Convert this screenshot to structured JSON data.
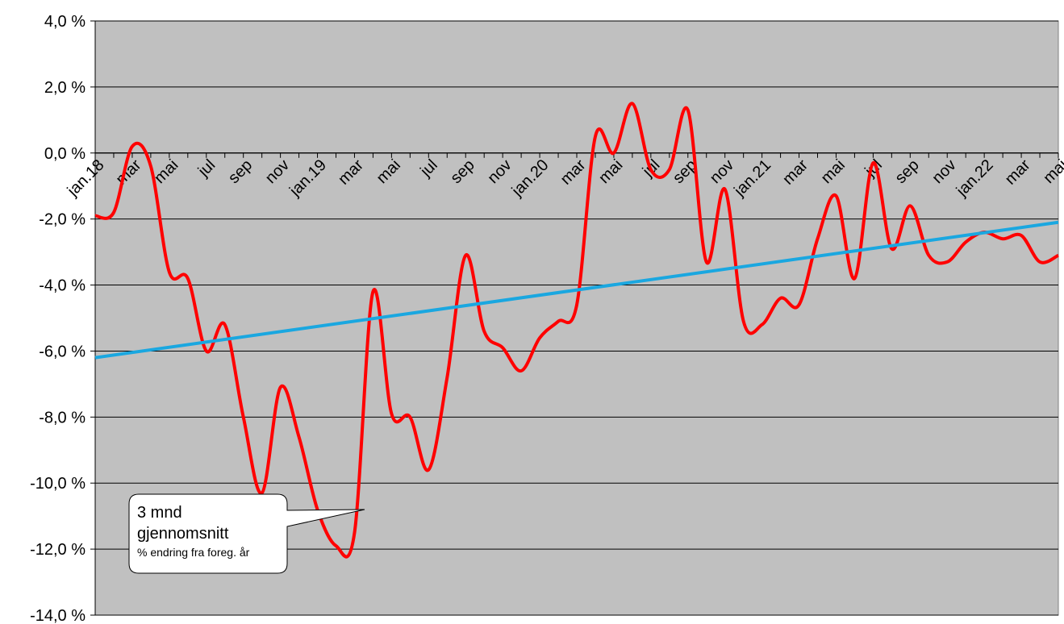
{
  "chart_data": {
    "type": "line",
    "ylim": [
      -14,
      4
    ],
    "y_ticks": [
      "4,0 %",
      "2,0 %",
      "0,0 %",
      "-2,0 %",
      "-4,0 %",
      "-6,0 %",
      "-8,0 %",
      "-10,0 %",
      "-12,0 %",
      "-14,0 %"
    ],
    "y_tick_values": [
      4,
      2,
      0,
      -2,
      -4,
      -6,
      -8,
      -10,
      -12,
      -14
    ],
    "x_tick_labels": [
      "jan.18",
      "mar",
      "mai",
      "jul",
      "sep",
      "nov",
      "jan.19",
      "mar",
      "mai",
      "jul",
      "sep",
      "nov",
      "jan.20",
      "mar",
      "mai",
      "jul",
      "sep",
      "nov",
      "jan.21",
      "mar",
      "mai",
      "jul",
      "sep",
      "nov",
      "jan.22",
      "mar",
      "mai"
    ],
    "grid": true,
    "plot_background": "#c0c0c0",
    "series": [
      {
        "color": "#ff0000",
        "x": [
          "jan.18",
          "feb",
          "mar",
          "apr",
          "mai",
          "jun",
          "jul",
          "aug",
          "sep",
          "okt",
          "nov",
          "des",
          "jan.19",
          "feb",
          "mar",
          "apr",
          "mai",
          "jun",
          "jul",
          "aug",
          "sep",
          "okt",
          "nov",
          "des",
          "jan.20",
          "feb",
          "mar",
          "apr",
          "mai",
          "jun",
          "jul",
          "aug",
          "sep",
          "okt",
          "nov",
          "des",
          "jan.21",
          "feb",
          "mar",
          "apr",
          "mai",
          "jun",
          "jul",
          "aug",
          "sep",
          "okt",
          "nov",
          "des",
          "jan.22",
          "feb",
          "mar",
          "apr",
          "mai"
        ],
        "values": [
          -1.9,
          -1.8,
          0.2,
          -0.4,
          -3.6,
          -3.8,
          -6.0,
          -5.2,
          -8.0,
          -10.3,
          -7.1,
          -8.6,
          -10.8,
          -11.9,
          -11.5,
          -4.2,
          -7.9,
          -8.0,
          -9.6,
          -6.8,
          -3.1,
          -5.4,
          -5.9,
          -6.6,
          -5.6,
          -5.1,
          -4.6,
          0.5,
          0.0,
          1.5,
          -0.5,
          -0.5,
          1.3,
          -3.3,
          -1.1,
          -5.1,
          -5.2,
          -4.4,
          -4.6,
          -2.6,
          -1.3,
          -3.8,
          -0.3,
          -2.9,
          -1.6,
          -3.1,
          -3.3,
          -2.7,
          -2.4,
          -2.6,
          -2.5,
          -3.3,
          -3.1
        ]
      },
      {
        "color": "#1aa7e0",
        "type": "trendline",
        "x": [
          "jan.18",
          "mai"
        ],
        "values": [
          -6.2,
          -2.1
        ]
      }
    ]
  },
  "callout": {
    "line1": "3 mnd",
    "line2": "gjennomsnitt",
    "line3": "% endring  fra foreg. år"
  }
}
